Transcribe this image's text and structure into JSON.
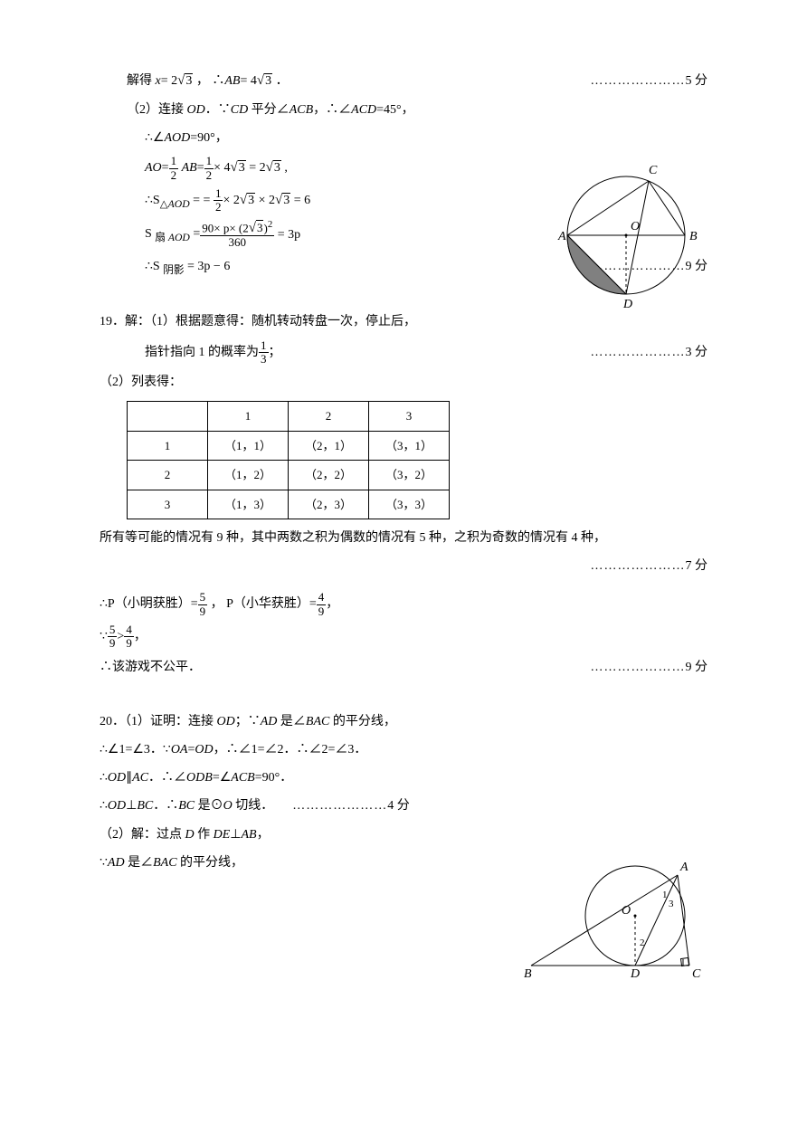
{
  "p18": {
    "line1_left": "解得 <span class='italic'>x</span>= 2<span class='sqrt'><span class='radicand'>3</span></span> ， ∴<span class='italic'>AB</span>= 4<span class='sqrt'><span class='radicand'>3</span></span> ．",
    "line1_right_dots": "…………………",
    "line1_score": "5 分",
    "line2": "（2）连接 <span class='italic'>OD</span>．∵<span class='italic'>CD</span> 平分∠<span class='italic'>ACB</span>，∴∠<span class='italic'>ACD</span>=45°，",
    "line3": "∴∠<span class='italic'>AOD</span>=90°，",
    "line4_pre": "<span class='italic'>AO</span>=",
    "line4_frac_a": "1",
    "line4_frac_b": "2",
    "line4_mid": " <span class='italic'>AB</span>=",
    "line4_post": "× 4<span class='sqrt'><span class='radicand'>3</span></span> = 2<span class='sqrt'><span class='radicand'>3</span></span> ,",
    "line5_pre": "∴S<sub>△<span class='italic'>AOD</span></sub> = = ",
    "line5_post": "× 2<span class='sqrt'><span class='radicand'>3</span></span> × 2<span class='sqrt'><span class='radicand'>3</span></span> = 6",
    "line6_pre": "S <sub>扇 <span class='italic'>AOD</span></sub> =",
    "line6_num": "90× p× (2<span class='sqrt'><span class='radicand'>3</span></span>)<sup>2</sup>",
    "line6_den": "360",
    "line6_post": " = 3p",
    "line7_left": "∴S <sub>阴影</sub> = 3p − 6",
    "line7_right_dots": "…………………",
    "line7_score": "9 分"
  },
  "p19": {
    "line1": "19．解：（1）根据题意得：随机转动转盘一次，停止后，",
    "line2_left_pre": "指针指向 1 的概率为",
    "line2_frac_a": "1",
    "line2_frac_b": "3",
    "line2_left_post": "；",
    "line2_right_dots": "…………………",
    "line2_score": "3 分",
    "line3": "（2）列表得：",
    "table": {
      "headers": [
        "",
        "1",
        "2",
        "3"
      ],
      "rows": [
        [
          "1",
          "（1，1）",
          "（2，1）",
          "（3，1）"
        ],
        [
          "2",
          "（1，2）",
          "（2，2）",
          "（3，2）"
        ],
        [
          "3",
          "（1，3）",
          "（2，3）",
          "（3，3）"
        ]
      ]
    },
    "line4": "所有等可能的情况有 9 种，其中两数之积为偶数的情况有 5 种，之积为奇数的情况有 4 种，",
    "line5_right_dots": "…………………",
    "line5_score": "7 分",
    "line6_pre": "∴P（小明获胜）=",
    "line6_f1a": "5",
    "line6_f1b": "9",
    "line6_mid": " ， P（小华获胜）=",
    "line6_f2a": "4",
    "line6_f2b": "9",
    "line6_post": "，",
    "line7_pre": "∵",
    "line7_f1a": "5",
    "line7_f1b": "9",
    "line7_mid": ">",
    "line7_f2a": "4",
    "line7_f2b": "9",
    "line7_post": "，",
    "line8_left": "∴该游戏不公平．",
    "line8_right_dots": "…………………",
    "line8_score": "9 分"
  },
  "p20": {
    "line1": "20．（1）证明：连接 <span class='italic'>OD</span>；∵<span class='italic'>AD</span> 是∠<span class='italic'>BAC</span> 的平分线，",
    "line2": "∴∠1=∠3．∵<span class='italic'>OA</span>=<span class='italic'>OD</span>，∴∠1=∠2．∴∠2=∠3．",
    "line3": "∴<span class='italic'>OD</span>∥<span class='italic'>AC</span>．∴∠<span class='italic'>ODB</span>=∠<span class='italic'>ACB</span>=90°．",
    "line4_left": "∴<span class='italic'>OD</span>⊥<span class='italic'>BC</span>．∴<span class='italic'>BC</span> 是⊙<span class='italic'>O</span> 切线．",
    "line4_right_dots": "…………………",
    "line4_score": "4 分",
    "line5": "（2）解：过点 <span class='italic'>D</span> 作 <span class='italic'>DE</span>⊥<span class='italic'>AB</span>，",
    "line6": "∵<span class='italic'>AD</span> 是∠<span class='italic'>BAC</span> 的平分线，"
  },
  "diagram1": {
    "labels": {
      "A": "A",
      "B": "B",
      "C": "C",
      "D": "D",
      "O": "O"
    },
    "circle_stroke": "#000000",
    "shaded_fill": "#808080",
    "background": "#ffffff"
  },
  "diagram2": {
    "labels": {
      "A": "A",
      "B": "B",
      "C": "C",
      "D": "D",
      "O": "O",
      "n1": "1",
      "n2": "2",
      "n3": "3"
    },
    "circle_stroke": "#000000",
    "background": "#ffffff"
  }
}
